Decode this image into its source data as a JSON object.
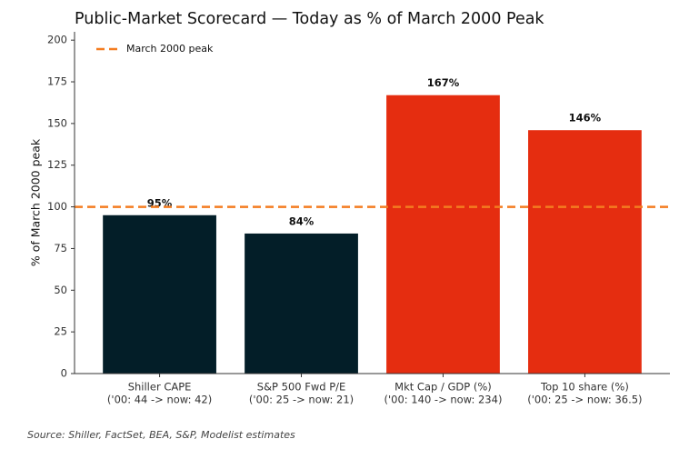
{
  "chart_data": {
    "type": "bar",
    "title": "Public-Market Scorecard — Today as % of March 2000 Peak",
    "y_label": "% of March 2000 peak",
    "categories": [
      "Shiller CAPE",
      "S&P 500 Fwd P/E",
      "Mkt Cap / GDP (%)",
      "Top 10 share (%)"
    ],
    "category_notes": [
      "('00: 44 -> now: 42)",
      "('00: 25 -> now: 21)",
      "('00: 140 -> now: 234)",
      "('00: 25 -> now: 36.5)"
    ],
    "values": [
      95,
      84,
      167,
      146
    ],
    "value_labels": [
      "95%",
      "84%",
      "167%",
      "146%"
    ],
    "colors": [
      "#031e28",
      "#031e28",
      "#e52d10",
      "#e52d10"
    ],
    "reference_line": {
      "name": "March 2000 peak",
      "value": 100,
      "color": "#f47c20"
    },
    "ylim": [
      0,
      205
    ],
    "yticks": [
      0,
      25,
      50,
      75,
      100,
      125,
      150,
      175,
      200
    ],
    "legend": "upper left",
    "source": "Source: Shiller, FactSet, BEA, S&P, Modelist estimates"
  }
}
